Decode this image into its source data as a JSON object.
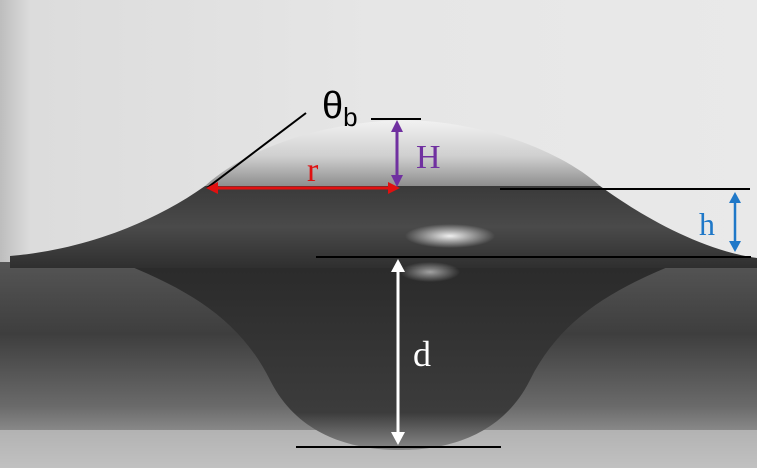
{
  "labels": {
    "theta": "θ",
    "theta_sub": "b",
    "r": "r",
    "H": "H",
    "h": "h",
    "d": "d"
  },
  "colors": {
    "r": "#e01010",
    "H": "#7030a0",
    "h": "#1f78c8",
    "d": "#ffffff",
    "reference_lines": "#000000"
  }
}
